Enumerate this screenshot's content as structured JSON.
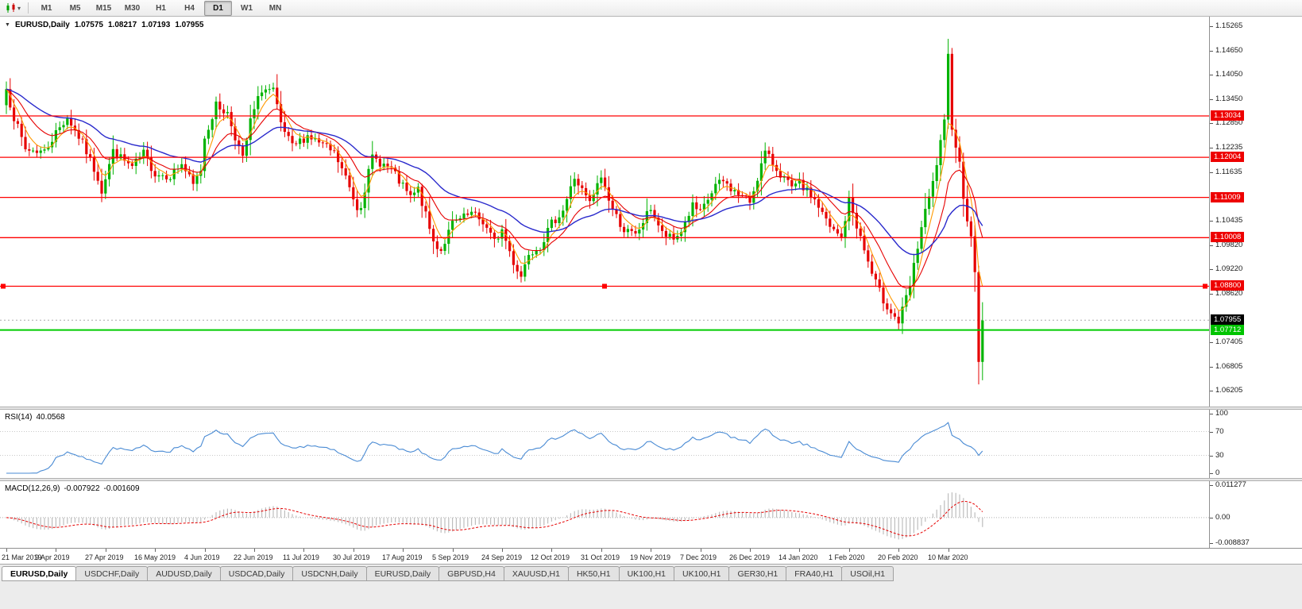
{
  "toolbar": {
    "icons": [
      {
        "name": "candlestick-chart-icon"
      },
      {
        "name": "dropdown-caret-icon",
        "glyph": "▾"
      }
    ],
    "timeframes": [
      "M1",
      "M5",
      "M15",
      "M30",
      "H1",
      "H4",
      "D1",
      "W1",
      "MN"
    ],
    "active_timeframe": "D1"
  },
  "main_chart": {
    "collapse_glyph": "▼",
    "title": "EURUSD,Daily",
    "ohlc": {
      "open": "1.07575",
      "high": "1.08217",
      "low": "1.07193",
      "close": "1.07955"
    },
    "price_axis_ticks": [
      "1.15265",
      "1.14650",
      "1.14050",
      "1.13450",
      "1.12850",
      "1.12235",
      "1.11635",
      "1.10435",
      "1.09820",
      "1.09220",
      "1.08620",
      "1.07405",
      "1.06805",
      "1.06205"
    ],
    "level_labels": [
      {
        "text": "1.13034",
        "price": 1.13034,
        "type": "resistance",
        "selected": false
      },
      {
        "text": "1.12004",
        "price": 1.12004,
        "type": "resistance",
        "selected": false
      },
      {
        "text": "1.11009",
        "price": 1.11009,
        "type": "resistance",
        "selected": false
      },
      {
        "text": "1.10008",
        "price": 1.10008,
        "type": "resistance",
        "selected": false
      },
      {
        "text": "1.08800",
        "price": 1.088,
        "type": "resistance",
        "selected": true
      }
    ],
    "bid_label": {
      "text": "1.07712",
      "price": 1.07712
    },
    "last_price_label": {
      "text": "1.07955",
      "price": 1.07955
    }
  },
  "rsi_panel": {
    "name": "RSI(14)",
    "value": "40.0568",
    "axis_ticks": [
      {
        "text": "100",
        "v": 100
      },
      {
        "text": "70",
        "v": 70
      },
      {
        "text": "30",
        "v": 30
      },
      {
        "text": "0",
        "v": 0
      }
    ],
    "levels": [
      70,
      30
    ]
  },
  "macd_panel": {
    "name": "MACD(12,26,9)",
    "value_main": "-0.007922",
    "value_signal": "-0.001609",
    "axis_ticks": [
      {
        "text": "0.011277",
        "v": 0.011277
      },
      {
        "text": "0.00",
        "v": 0
      },
      {
        "text": "-0.008837",
        "v": -0.008837
      }
    ]
  },
  "time_axis": {
    "labels": [
      "21 Mar 2019",
      "9 Apr 2019",
      "27 Apr 2019",
      "16 May 2019",
      "4 Jun 2019",
      "22 Jun 2019",
      "11 Jul 2019",
      "30 Jul 2019",
      "17 Aug 2019",
      "5 Sep 2019",
      "24 Sep 2019",
      "12 Oct 2019",
      "31 Oct 2019",
      "19 Nov 2019",
      "7 Dec 2019",
      "26 Dec 2019",
      "14 Jan 2020",
      "1 Feb 2020",
      "20 Feb 2020",
      "10 Mar 2020"
    ]
  },
  "tabs": [
    {
      "label": "EURUSD,Daily",
      "active": true
    },
    {
      "label": "USDCHF,Daily",
      "active": false
    },
    {
      "label": "AUDUSD,Daily",
      "active": false
    },
    {
      "label": "USDCAD,Daily",
      "active": false
    },
    {
      "label": "USDCNH,Daily",
      "active": false
    },
    {
      "label": "EURUSD,Daily",
      "active": false
    },
    {
      "label": "GBPUSD,H4",
      "active": false
    },
    {
      "label": "XAUUSD,H1",
      "active": false
    },
    {
      "label": "HK50,H1",
      "active": false
    },
    {
      "label": "UK100,H1",
      "active": false
    },
    {
      "label": "UK100,H1",
      "active": false
    },
    {
      "label": "GER30,H1",
      "active": false
    },
    {
      "label": "FRA40,H1",
      "active": false
    },
    {
      "label": "USOil,H1",
      "active": false
    }
  ],
  "colors": {
    "candle_up": "#00b300",
    "candle_down": "#e60000",
    "ma_fast": "#ff9900",
    "ma_medium": "#e60000",
    "ma_slow": "#2929cc",
    "level_line": "#ff0000",
    "bid_line": "#00cc00",
    "last_price_line": "#aaaaaa",
    "rsi_line": "#4a8bd4",
    "rsi_level_line": "#c9c9c9",
    "macd_histogram": "#bdbdbd",
    "macd_signal": "#e60000",
    "macd_zero_line": "#b0b0b0"
  },
  "chart_data": {
    "type": "candlestick",
    "symbol": "EURUSD",
    "timeframe": "Daily",
    "bars_total": 257,
    "bars_per_x_label": 13,
    "ylim": [
      1.0581,
      1.155
    ],
    "close_waypoints": [
      [
        0,
        1.137
      ],
      [
        2,
        1.13
      ],
      [
        5,
        1.122
      ],
      [
        10,
        1.1215
      ],
      [
        13,
        1.1262
      ],
      [
        16,
        1.13
      ],
      [
        20,
        1.1235
      ],
      [
        24,
        1.115
      ],
      [
        25,
        1.1118
      ],
      [
        28,
        1.1215
      ],
      [
        33,
        1.1175
      ],
      [
        36,
        1.121
      ],
      [
        39,
        1.116
      ],
      [
        43,
        1.1155
      ],
      [
        46,
        1.1185
      ],
      [
        49,
        1.113
      ],
      [
        51,
        1.117
      ],
      [
        52,
        1.125
      ],
      [
        55,
        1.133
      ],
      [
        58,
        1.131
      ],
      [
        62,
        1.1195
      ],
      [
        64,
        1.129
      ],
      [
        67,
        1.137
      ],
      [
        70,
        1.1365
      ],
      [
        72,
        1.128
      ],
      [
        75,
        1.1225
      ],
      [
        79,
        1.1255
      ],
      [
        83,
        1.123
      ],
      [
        86,
        1.121
      ],
      [
        89,
        1.115
      ],
      [
        92,
        1.1075
      ],
      [
        93,
        1.1085
      ],
      [
        96,
        1.12
      ],
      [
        101,
        1.117
      ],
      [
        103,
        1.114
      ],
      [
        106,
        1.11
      ],
      [
        108,
        1.112
      ],
      [
        112,
        1.099
      ],
      [
        114,
        1.097
      ],
      [
        117,
        1.1035
      ],
      [
        122,
        1.106
      ],
      [
        125,
        1.104
      ],
      [
        128,
        1.099
      ],
      [
        130,
        1.102
      ],
      [
        133,
        1.094
      ],
      [
        135,
        1.0905
      ],
      [
        137,
        1.0965
      ],
      [
        140,
        1.098
      ],
      [
        143,
        1.1035
      ],
      [
        146,
        1.107
      ],
      [
        149,
        1.115
      ],
      [
        153,
        1.1085
      ],
      [
        156,
        1.1152
      ],
      [
        159,
        1.107
      ],
      [
        162,
        1.102
      ],
      [
        165,
        1.1005
      ],
      [
        169,
        1.1075
      ],
      [
        172,
        1.101
      ],
      [
        175,
        1.0995
      ],
      [
        177,
        1.1018
      ],
      [
        180,
        1.108
      ],
      [
        182,
        1.106
      ],
      [
        186,
        1.113
      ],
      [
        188,
        1.114
      ],
      [
        191,
        1.1115
      ],
      [
        195,
        1.109
      ],
      [
        199,
        1.1212
      ],
      [
        202,
        1.1172
      ],
      [
        206,
        1.1122
      ],
      [
        208,
        1.1134
      ],
      [
        212,
        1.1095
      ],
      [
        216,
        1.1025
      ],
      [
        219,
        1.1
      ],
      [
        221,
        1.1094
      ],
      [
        224,
        1.1
      ],
      [
        227,
        1.091
      ],
      [
        230,
        1.0845
      ],
      [
        234,
        1.079
      ],
      [
        237,
        1.088
      ],
      [
        240,
        1.1027
      ],
      [
        243,
        1.1135
      ],
      [
        246,
        1.1284
      ],
      [
        247,
        1.145
      ],
      [
        248,
        1.128
      ],
      [
        250,
        1.1184
      ],
      [
        251,
        1.1106
      ],
      [
        253,
        1.0995
      ],
      [
        254,
        1.092
      ],
      [
        255,
        1.069
      ],
      [
        256,
        1.0795
      ]
    ],
    "spike_high": 1.1495,
    "crash_low": 1.0636,
    "horizontal_levels": [
      1.13034,
      1.12004,
      1.11009,
      1.10008,
      1.088
    ],
    "bid_price": 1.07712,
    "last_price": 1.07955,
    "moving_averages": [
      {
        "period": 5,
        "type": "ema",
        "color_key": "ma_fast"
      },
      {
        "period": 13,
        "type": "ema",
        "color_key": "ma_medium"
      },
      {
        "period": 34,
        "type": "ema",
        "color_key": "ma_slow"
      }
    ],
    "rsi": {
      "period": 14,
      "last": 40.0568,
      "range": [
        0,
        100
      ]
    },
    "macd": {
      "fast": 12,
      "slow": 26,
      "signal": 9,
      "last_main": -0.007922,
      "last_signal": -0.001609,
      "range": [
        -0.008837,
        0.011277
      ]
    }
  }
}
